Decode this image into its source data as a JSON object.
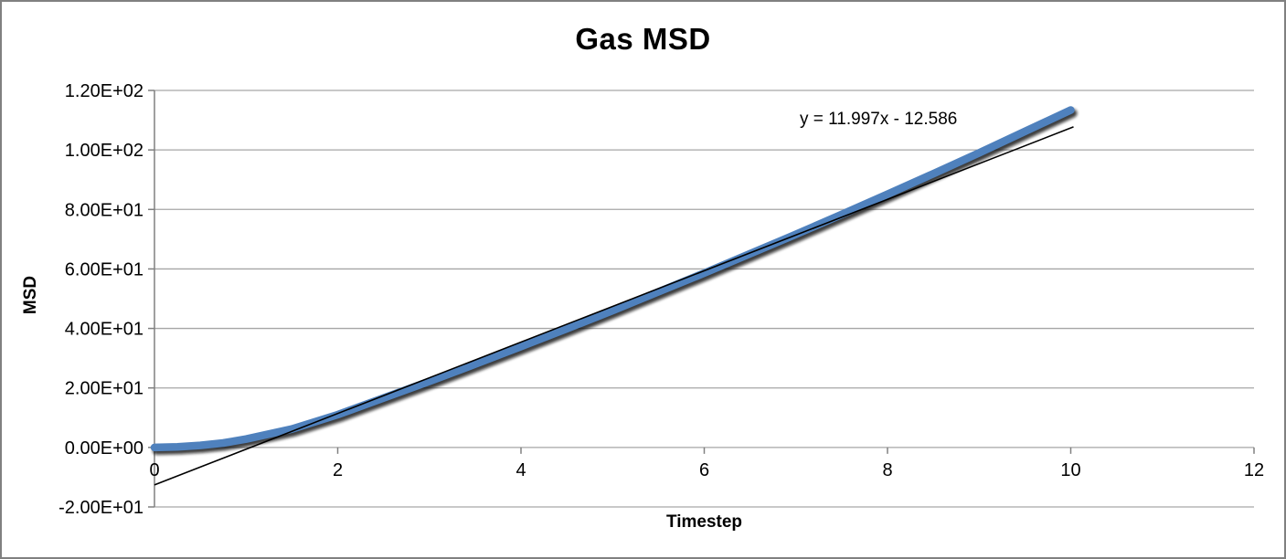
{
  "chart_data": {
    "type": "scatter",
    "title": "Gas MSD",
    "xlabel": "Timestep",
    "ylabel": "MSD",
    "xlim": [
      0,
      12
    ],
    "ylim": [
      -20,
      120
    ],
    "grid": "horizontal",
    "legend": "none",
    "xticks": [
      0,
      2,
      4,
      6,
      8,
      10,
      12
    ],
    "xtick_labels": [
      "0",
      "2",
      "4",
      "6",
      "8",
      "10",
      "12"
    ],
    "ytick_values": [
      -20,
      0,
      20,
      40,
      60,
      80,
      100,
      120
    ],
    "ytick_labels": [
      "-2.00E+01",
      "0.00E+00",
      "2.00E+01",
      "4.00E+01",
      "6.00E+01",
      "8.00E+01",
      "1.00E+02",
      "1.20E+02"
    ],
    "series": [
      {
        "name": "Gas MSD",
        "color": "#4F81BD",
        "style": "thick-line-with-shadow",
        "x": [
          0,
          0.25,
          0.5,
          0.75,
          1,
          1.5,
          2,
          2.5,
          3,
          3.5,
          4,
          4.5,
          5,
          5.5,
          6,
          6.5,
          7,
          7.5,
          8,
          8.5,
          9,
          9.5,
          10
        ],
        "y": [
          0,
          0.2,
          0.7,
          1.5,
          2.8,
          6.2,
          11.0,
          16.6,
          22.2,
          28.0,
          33.9,
          39.9,
          46.0,
          52.3,
          58.6,
          65.1,
          71.6,
          78.3,
          85.1,
          92.0,
          99.0,
          106.2,
          113.4
        ]
      }
    ],
    "trendline": {
      "label": "y = 11.997x - 12.586",
      "slope": 11.997,
      "intercept": -12.586,
      "color": "#000000",
      "x_range": [
        0,
        10.03
      ]
    },
    "colors": {
      "series_blue": "#4F81BD",
      "gridline_gray": "#A6A6A6",
      "axis_gray": "#808080",
      "frame_border": "#808080"
    }
  }
}
